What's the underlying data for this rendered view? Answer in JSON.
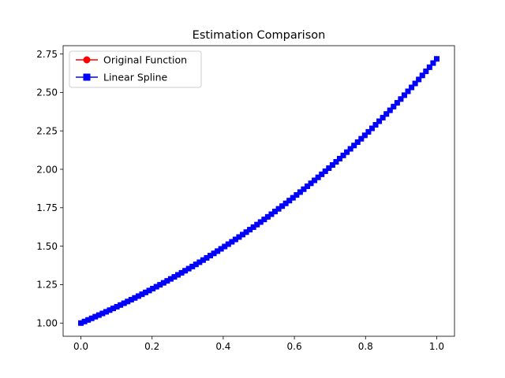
{
  "chart_data": {
    "type": "line",
    "title": "Estimation Comparison",
    "xlabel": "",
    "ylabel": "",
    "xlim": [
      -0.05,
      1.05
    ],
    "ylim": [
      0.9141,
      2.8041
    ],
    "x_ticks": [
      0.0,
      0.2,
      0.4,
      0.6,
      0.8,
      1.0
    ],
    "x_tick_labels": [
      "0.0",
      "0.2",
      "0.4",
      "0.6",
      "0.8",
      "1.0"
    ],
    "y_ticks": [
      1.0,
      1.25,
      1.5,
      1.75,
      2.0,
      2.25,
      2.5,
      2.75
    ],
    "y_tick_labels": [
      "1.00",
      "1.25",
      "1.50",
      "1.75",
      "2.00",
      "2.25",
      "2.50",
      "2.75"
    ],
    "grid": false,
    "legend_position": "top-left",
    "x": {
      "start": 0.0,
      "stop": 1.0,
      "count": 100
    },
    "series": [
      {
        "name": "Original Function",
        "function": "exp(x)",
        "color": "#ff0000",
        "marker": "circle"
      },
      {
        "name": "Linear Spline",
        "function": "exp(x)",
        "color": "#0000ff",
        "marker": "square"
      }
    ]
  }
}
